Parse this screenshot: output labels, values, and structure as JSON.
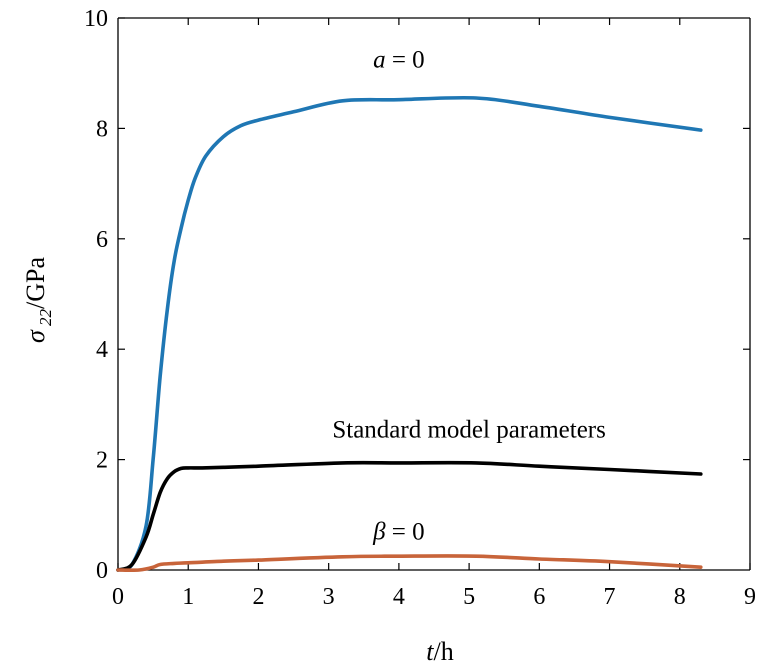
{
  "chart_data": {
    "type": "line",
    "xlabel": "t/h",
    "ylabel": "σ22/GPa",
    "xlim": [
      0,
      9
    ],
    "ylim": [
      0,
      10
    ],
    "xticks": [
      "0",
      "1",
      "2",
      "3",
      "4",
      "5",
      "6",
      "7",
      "8",
      "9"
    ],
    "yticks": [
      "0",
      "2",
      "4",
      "6",
      "8",
      "10"
    ],
    "grid": false,
    "series": [
      {
        "name": "a = 0",
        "color": "#1f77b4",
        "x": [
          0,
          0.2,
          0.4,
          0.5,
          0.6,
          0.7,
          0.8,
          0.9,
          1.0,
          1.1,
          1.25,
          1.5,
          1.75,
          2.0,
          2.5,
          3.2,
          4.0,
          5.1,
          6.0,
          7.0,
          8.3
        ],
        "y": [
          0,
          0.1,
          0.8,
          2.0,
          3.5,
          4.7,
          5.6,
          6.2,
          6.7,
          7.1,
          7.5,
          7.85,
          8.05,
          8.15,
          8.3,
          8.5,
          8.52,
          8.55,
          8.4,
          8.2,
          7.97
        ]
      },
      {
        "name": "Standard model parameters",
        "color": "#000000",
        "x": [
          0,
          0.2,
          0.4,
          0.5,
          0.6,
          0.7,
          0.8,
          0.9,
          1.0,
          1.2,
          1.5,
          2.0,
          3.2,
          4.0,
          5.1,
          6.0,
          7.0,
          8.3
        ],
        "y": [
          0,
          0.1,
          0.6,
          1.0,
          1.4,
          1.65,
          1.78,
          1.84,
          1.85,
          1.85,
          1.86,
          1.88,
          1.94,
          1.94,
          1.94,
          1.88,
          1.82,
          1.74
        ]
      },
      {
        "name": "β = 0",
        "color": "#c8643a",
        "x": [
          0,
          0.3,
          0.5,
          0.6,
          0.8,
          1.0,
          1.5,
          2.0,
          3.2,
          4.0,
          5.1,
          6.0,
          7.0,
          8.3
        ],
        "y": [
          0,
          0.0,
          0.05,
          0.1,
          0.12,
          0.13,
          0.16,
          0.18,
          0.24,
          0.25,
          0.25,
          0.2,
          0.15,
          0.05
        ]
      }
    ],
    "annotations": [
      {
        "text": "a = 0",
        "x": 4.0,
        "y": 9.1
      },
      {
        "text": "Standard model parameters",
        "x": 5.0,
        "y": 2.4
      },
      {
        "text": "β = 0",
        "x": 4.0,
        "y": 0.55
      }
    ]
  }
}
